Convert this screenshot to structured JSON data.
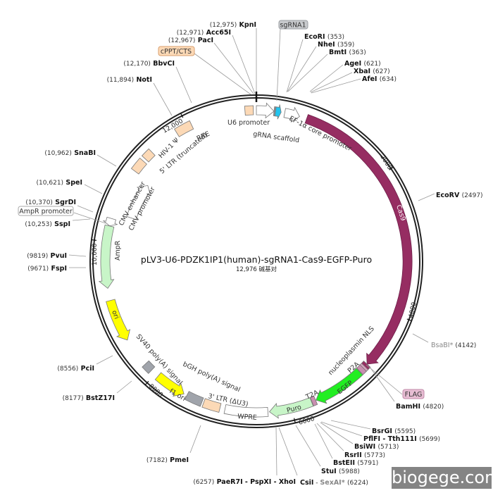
{
  "map": {
    "title": "pLV3-U6-PDZK1IP1(human)-sgRNA1-Cas9-EGFP-Puro",
    "subtitle": "12,976 碱基对",
    "total_bp": 12976,
    "ticks": [
      "2000",
      "4000",
      "6000",
      "8000",
      "10,000",
      "12,000"
    ]
  },
  "features": [
    {
      "name": "U6 promoter",
      "start": 0,
      "end": 241,
      "dir": 1,
      "color": "#ffffff"
    },
    {
      "name": "cPPT/CTS",
      "start": 12820,
      "end": 12935,
      "dir": 0,
      "color": "#fcd9b6"
    },
    {
      "name": "sgRNA1",
      "start": 242,
      "end": 262,
      "dir": 0,
      "color": "#8a8f96"
    },
    {
      "name": "gRNA scaffold",
      "start": 262,
      "end": 340,
      "dir": 1,
      "color": "#22c4ee"
    },
    {
      "name": "EF-1α core promoter",
      "start": 390,
      "end": 600,
      "dir": 1,
      "color": "#ffffff"
    },
    {
      "name": "Cas9",
      "start": 700,
      "end": 4790,
      "dir": 1,
      "color": "#962d62"
    },
    {
      "name": "nucleoplasmin NLS",
      "start": 4790,
      "end": 4835,
      "dir": 0,
      "color": "#962d62"
    },
    {
      "name": "FLAG",
      "start": 4835,
      "end": 4865,
      "dir": 0,
      "color": "#d9a3c0"
    },
    {
      "name": "P2A",
      "start": 4865,
      "end": 4930,
      "dir": 0,
      "color": "#c98fb0"
    },
    {
      "name": "EGFP",
      "start": 4935,
      "end": 5650,
      "dir": 1,
      "color": "#22ee22"
    },
    {
      "name": "T2A",
      "start": 5655,
      "end": 5710,
      "dir": 0,
      "color": "#c98fb0"
    },
    {
      "name": "Puro",
      "start": 5715,
      "end": 6310,
      "dir": 1,
      "color": "#c8f5c8"
    },
    {
      "name": "WPRE",
      "start": 6330,
      "end": 6920,
      "dir": 0,
      "color": "#ffffff"
    },
    {
      "name": "3' LTR (ΔU3)",
      "start": 6990,
      "end": 7225,
      "dir": 0,
      "color": "#fcd9b6"
    },
    {
      "name": "bGH poly(A) signal",
      "start": 7250,
      "end": 7475,
      "dir": 0,
      "color": "#a0a4ab"
    },
    {
      "name": "f1 ori",
      "start": 7520,
      "end": 7950,
      "dir": -1,
      "color": "#ffff00"
    },
    {
      "name": "SV40 poly(A) signal",
      "start": 8070,
      "end": 8190,
      "dir": 0,
      "color": "#a0a4ab"
    },
    {
      "name": "ori",
      "start": 8600,
      "end": 9190,
      "dir": -1,
      "color": "#ffff00"
    },
    {
      "name": "AmpR",
      "start": 9360,
      "end": 10220,
      "dir": -1,
      "color": "#c8f5c8"
    },
    {
      "name": "AmpR promoter",
      "start": 10222,
      "end": 10325,
      "dir": -1,
      "color": "#ffffff"
    },
    {
      "name": "CMV enhancer / CMV promoter",
      "start": 10420,
      "end": 10990,
      "dir": 1,
      "color": "#ffffff"
    },
    {
      "name": "5' LTR (truncated)",
      "start": 11050,
      "end": 11230,
      "dir": 0,
      "color": "#fcd9b6"
    },
    {
      "name": "HIV-1 Ψ",
      "start": 11270,
      "end": 11400,
      "dir": 0,
      "color": "#fcd9b6"
    },
    {
      "name": "RRE",
      "start": 11830,
      "end": 12060,
      "dir": 0,
      "color": "#fcd9b6"
    }
  ],
  "labels": {
    "u6": "U6 promoter",
    "grna": "gRNA scaffold",
    "ef1a": "EF-1α core promoter",
    "cas9": "Cas9",
    "nls": "nucleoplasmin NLS",
    "p2a": "P2A",
    "egfp": "EGFP",
    "t2a": "T2A",
    "puro": "Puro",
    "wpre": "WPRE",
    "ltr3": "3' LTR (ΔU3)",
    "bgh": "bGH poly(A) signal",
    "f1": "f1 ori",
    "sv40": "SV40 poly(A) signal",
    "ori": "ori",
    "ampr": "AmpR",
    "cmve": "CMV enhancer",
    "cmvp": "CMV promoter",
    "ltr5": "5' LTR (truncated)",
    "psi": "HIV-1 Ψ",
    "rre": "RRE",
    "cppt": "cPPT/CTS",
    "sgrna1": "sgRNA1",
    "flag": "FLAG",
    "amprp": "AmpR promoter"
  },
  "enzymes": [
    {
      "name": "KpnI",
      "pos": "(12,975)"
    },
    {
      "name": "Acc65I",
      "pos": "(12,971)"
    },
    {
      "name": "PacI",
      "pos": "(12,967)"
    },
    {
      "name": "BbvCI",
      "pos": "(12,170)"
    },
    {
      "name": "NotI",
      "pos": "(11,894)"
    },
    {
      "name": "SnaBI",
      "pos": "(10,962)"
    },
    {
      "name": "SpeI",
      "pos": "(10,621)"
    },
    {
      "name": "SgrDI",
      "pos": "(10,370)"
    },
    {
      "name": "SspI",
      "pos": "(10,253)"
    },
    {
      "name": "PvuI",
      "pos": "(9819)"
    },
    {
      "name": "FspI",
      "pos": "(9671)"
    },
    {
      "name": "PciI",
      "pos": "(8556)"
    },
    {
      "name": "BstZ17I",
      "pos": "(8177)"
    },
    {
      "name": "PmeI",
      "pos": "(7182)"
    },
    {
      "name": "PaeR7I - PspXI - XhoI",
      "pos": "(6257)"
    },
    {
      "name": "CsiI",
      "name2": "SexAI*",
      "pos": "(6224)"
    },
    {
      "name": "StuI",
      "pos": "(5988)"
    },
    {
      "name": "BstEII",
      "pos": "(5791)"
    },
    {
      "name": "RsrII",
      "pos": "(5773)"
    },
    {
      "name": "BsiWI",
      "pos": "(5713)"
    },
    {
      "name": "PflFI - Tth111I",
      "pos": "(5699)"
    },
    {
      "name": "BsrGI",
      "pos": "(5595)"
    },
    {
      "name": "BamHI",
      "pos": "(4820)"
    },
    {
      "name": "BsaBI*",
      "pos": "(4142)"
    },
    {
      "name": "EcoRV",
      "pos": "(2497)"
    },
    {
      "name": "EcoRI",
      "pos": "(353)"
    },
    {
      "name": "NheI",
      "pos": "(359)"
    },
    {
      "name": "BmtI",
      "pos": "(363)"
    },
    {
      "name": "AgeI",
      "pos": "(621)"
    },
    {
      "name": "XbaI",
      "pos": "(627)"
    },
    {
      "name": "AfeI",
      "pos": "(634)"
    }
  ],
  "watermark": "biogege.com"
}
